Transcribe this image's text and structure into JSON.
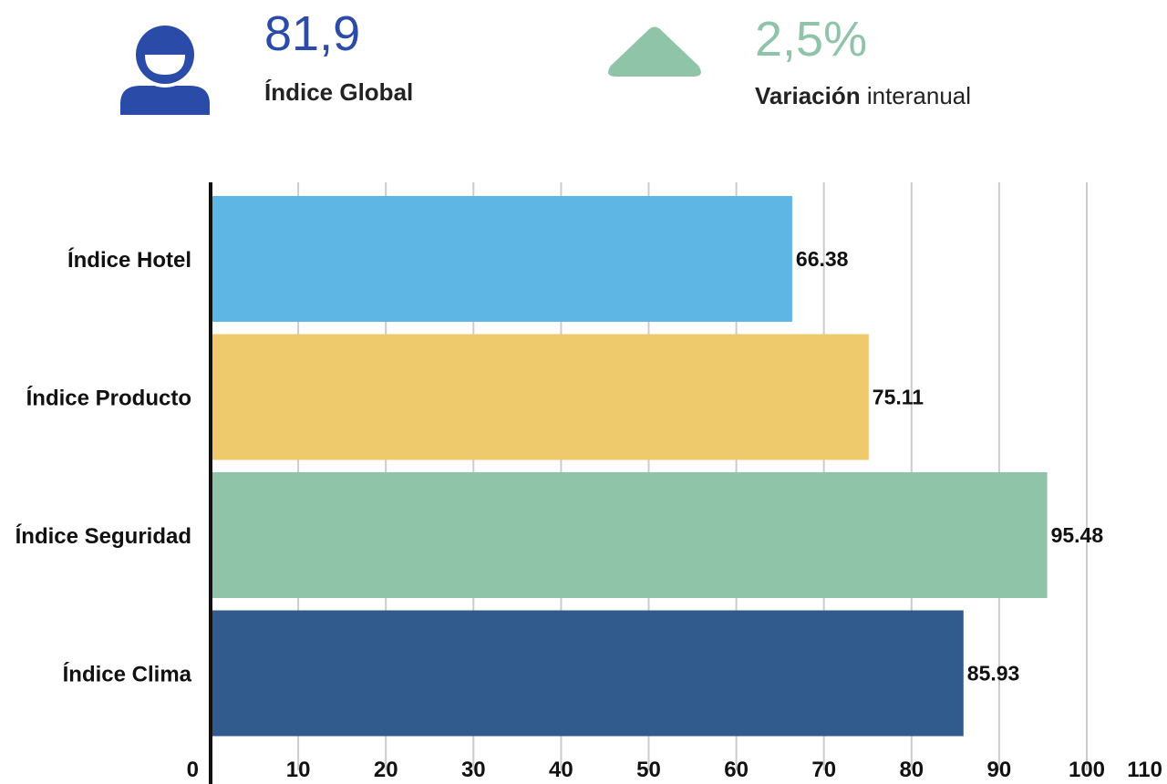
{
  "kpis": {
    "global": {
      "value": "81,9",
      "label": "Índice Global",
      "icon": "user-icon",
      "color": "#2a4ba8"
    },
    "variation": {
      "value": "2,5%",
      "label_strong": "Variación",
      "label_soft": " interanual",
      "icon": "triangle-up-icon",
      "color": "#8fc4a9"
    }
  },
  "chart_data": {
    "type": "bar",
    "orientation": "horizontal",
    "categories": [
      "Índice Hotel",
      "Índice Producto",
      "Índice Seguridad",
      "Índice Clima"
    ],
    "values": [
      66.38,
      75.11,
      95.48,
      85.93
    ],
    "value_labels": [
      "66.38",
      "75.11",
      "95.48",
      "85.93"
    ],
    "colors": [
      "#5eb6e4",
      "#eeca6c",
      "#8fc4a9",
      "#305b8c"
    ],
    "xlim": [
      0,
      110
    ],
    "xticks": [
      "0",
      "10",
      "20",
      "30",
      "40",
      "50",
      "60",
      "70",
      "80",
      "90",
      "100",
      "110"
    ],
    "grid": true,
    "title": "",
    "xlabel": "",
    "ylabel": ""
  }
}
